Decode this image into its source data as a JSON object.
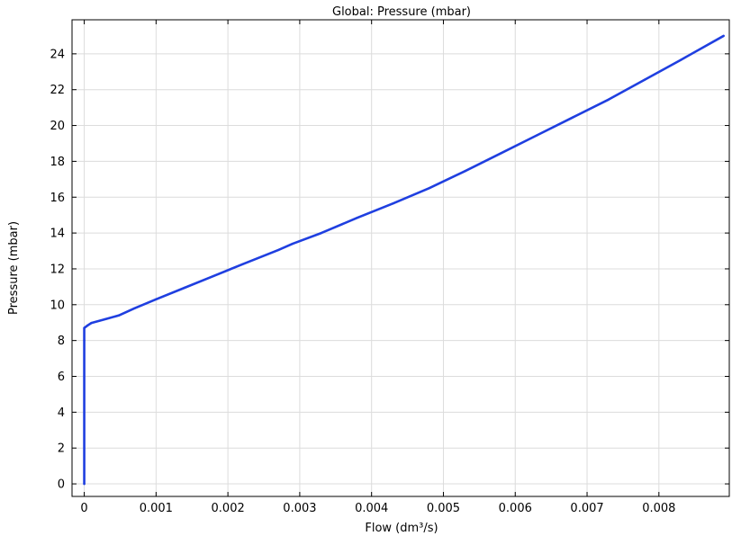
{
  "chart_data": {
    "type": "line",
    "title": "Global: Pressure (mbar)",
    "xlabel": "Flow (dm³/s)",
    "ylabel": "Pressure (mbar)",
    "xlim": [
      -0.00017,
      0.00898
    ],
    "ylim": [
      -0.7,
      25.9
    ],
    "x_ticks": [
      "0",
      "0.001",
      "0.002",
      "0.003",
      "0.004",
      "0.005",
      "0.006",
      "0.007",
      "0.008"
    ],
    "x_tick_values": [
      0,
      0.001,
      0.002,
      0.003,
      0.004,
      0.005,
      0.006,
      0.007,
      0.008
    ],
    "y_ticks": [
      "0",
      "2",
      "4",
      "6",
      "8",
      "10",
      "12",
      "14",
      "16",
      "18",
      "20",
      "22",
      "24"
    ],
    "y_tick_values": [
      0,
      2,
      4,
      6,
      8,
      10,
      12,
      14,
      16,
      18,
      20,
      22,
      24
    ],
    "grid": true,
    "series": [
      {
        "color": "#1f3fe0",
        "x": [
          0,
          0,
          0,
          5e-05,
          0.0001,
          0.0003,
          0.00048,
          0.0007,
          0.001,
          0.0014,
          0.0018,
          0.0022,
          0.0027,
          0.0029,
          0.0033,
          0.0038,
          0.0043,
          0.0048,
          0.0053,
          0.0058,
          0.0063,
          0.0068,
          0.0073,
          0.0078,
          0.0083,
          0.0089
        ],
        "y": [
          0,
          8.0,
          8.7,
          8.85,
          8.98,
          9.2,
          9.4,
          9.8,
          10.3,
          10.95,
          11.6,
          12.25,
          13.05,
          13.4,
          14.0,
          14.85,
          15.65,
          16.5,
          17.45,
          18.45,
          19.45,
          20.45,
          21.45,
          22.55,
          23.65,
          25.0
        ]
      }
    ]
  }
}
